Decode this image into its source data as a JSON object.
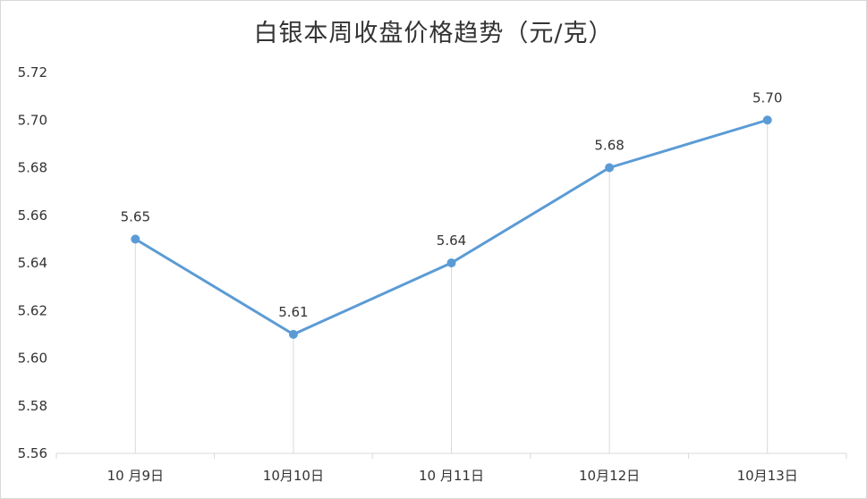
{
  "chart_data": {
    "type": "line",
    "title": "白银本周收盘价格趋势（元/克）",
    "categories": [
      "10 月9日",
      "10月10日",
      "10 月11日",
      "10月12日",
      "10月13日"
    ],
    "values": [
      5.65,
      5.61,
      5.64,
      5.68,
      5.7
    ],
    "data_labels": [
      "5.65",
      "5.61",
      "5.64",
      "5.68",
      "5.70"
    ],
    "ylim": [
      5.56,
      5.72
    ],
    "y_step": 0.02,
    "y_tick_labels": [
      "5.56",
      "5.58",
      "5.60",
      "5.62",
      "5.64",
      "5.66",
      "5.68",
      "5.70",
      "5.72"
    ],
    "drop_lines": true,
    "gridlines": false,
    "legend": "none",
    "colors": {
      "line": "#5b9bd5",
      "drop_line": "#d9d9d9",
      "axis": "#d9d9d9",
      "text": "#333333"
    }
  }
}
